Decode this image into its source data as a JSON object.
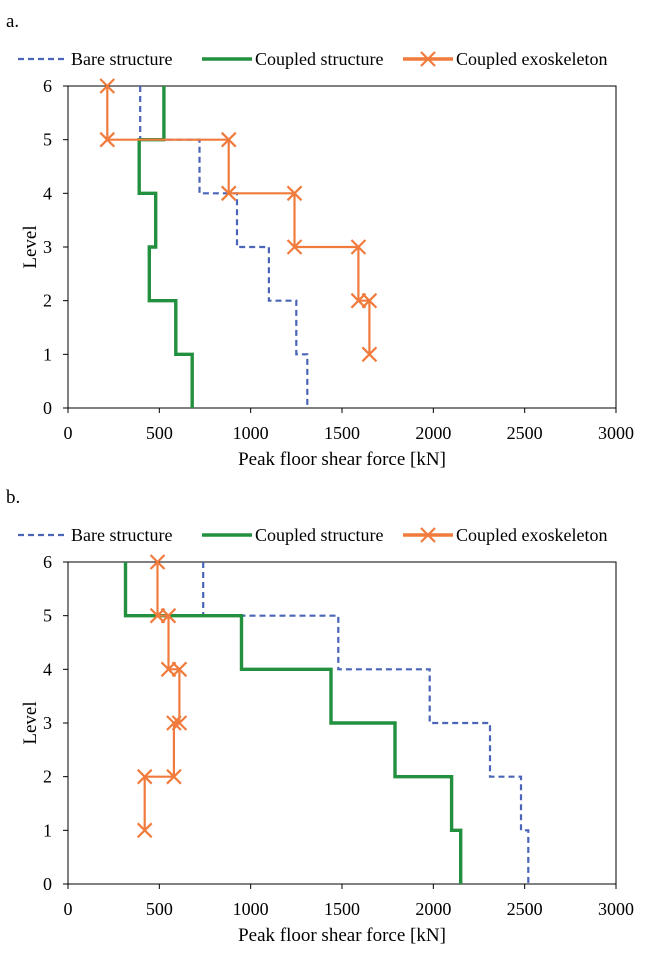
{
  "colors": {
    "bare": "#4a64b8",
    "coupled_structure": "#22903f",
    "coupled_exoskeleton": "#f07b3c",
    "axis": "#000000"
  },
  "chart_data": [
    {
      "type": "line",
      "panel_label": "a.",
      "xlabel": "Peak floor shear force [kN]",
      "ylabel": "Level",
      "xlim": [
        0,
        3000
      ],
      "ylim": [
        0,
        6
      ],
      "xticks": [
        "0",
        "500",
        "1000",
        "1500",
        "2000",
        "2500",
        "3000"
      ],
      "yticks": [
        "0",
        "1",
        "2",
        "3",
        "4",
        "5",
        "6"
      ],
      "grid": false,
      "legend_position": "top",
      "series": [
        {
          "name": "Bare structure",
          "style": "dashed",
          "marker": "none",
          "x": [
            395,
            395,
            720,
            720,
            925,
            925,
            1100,
            1100,
            1250,
            1250,
            1310,
            1310
          ],
          "y": [
            6,
            5,
            5,
            4,
            4,
            3,
            3,
            2,
            2,
            1,
            1,
            0
          ]
        },
        {
          "name": "Coupled structure",
          "style": "solid",
          "marker": "none",
          "x": [
            525,
            525,
            390,
            390,
            480,
            480,
            445,
            445,
            590,
            590,
            680,
            680
          ],
          "y": [
            6,
            5,
            5,
            4,
            4,
            3,
            3,
            2,
            2,
            1,
            1,
            0
          ]
        },
        {
          "name": "Coupled exoskeleton",
          "style": "solid",
          "marker": "x",
          "x": [
            215,
            215,
            880,
            880,
            1240,
            1240,
            1590,
            1590,
            1650,
            1650
          ],
          "y": [
            6,
            5,
            5,
            4,
            4,
            3,
            3,
            2,
            2,
            1
          ]
        }
      ]
    },
    {
      "type": "line",
      "panel_label": "b.",
      "xlabel": "Peak floor shear force [kN]",
      "ylabel": "Level",
      "xlim": [
        0,
        3000
      ],
      "ylim": [
        0,
        6
      ],
      "xticks": [
        "0",
        "500",
        "1000",
        "1500",
        "2000",
        "2500",
        "3000"
      ],
      "yticks": [
        "0",
        "1",
        "2",
        "3",
        "4",
        "5",
        "6"
      ],
      "grid": false,
      "legend_position": "top",
      "series": [
        {
          "name": "Bare structure",
          "style": "dashed",
          "marker": "none",
          "x": [
            740,
            740,
            1480,
            1480,
            1980,
            1980,
            2310,
            2310,
            2480,
            2480,
            2520,
            2520
          ],
          "y": [
            6,
            5,
            5,
            4,
            4,
            3,
            3,
            2,
            2,
            1,
            1,
            0
          ]
        },
        {
          "name": "Coupled structure",
          "style": "solid",
          "marker": "none",
          "x": [
            315,
            315,
            950,
            950,
            1440,
            1440,
            1790,
            1790,
            2100,
            2100,
            2150,
            2150
          ],
          "y": [
            6,
            5,
            5,
            4,
            4,
            3,
            3,
            2,
            2,
            1,
            1,
            0
          ]
        },
        {
          "name": "Coupled exoskeleton",
          "style": "solid",
          "marker": "x",
          "x": [
            490,
            490,
            550,
            550,
            610,
            610,
            580,
            580,
            420,
            420
          ],
          "y": [
            6,
            5,
            5,
            4,
            4,
            3,
            3,
            2,
            2,
            1
          ]
        }
      ]
    }
  ]
}
